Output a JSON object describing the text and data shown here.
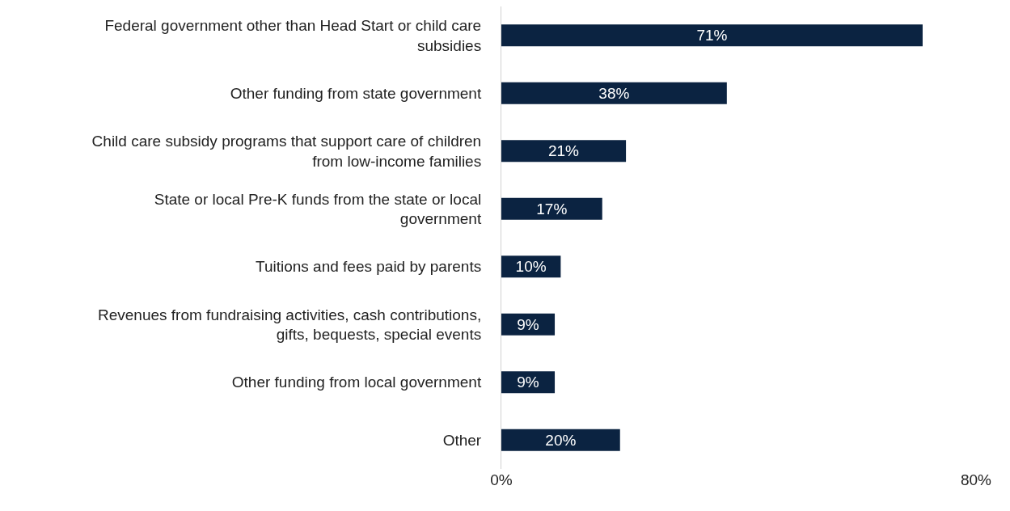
{
  "chart_data": {
    "type": "bar",
    "orientation": "horizontal",
    "categories": [
      "Federal government other than Head Start or child care\nsubsidies",
      "Other funding from state government",
      "Child care subsidy programs that support care of children\nfrom low-income families",
      "State or local Pre-K funds from the state or local\ngovernment",
      "Tuitions and fees paid by parents",
      "Revenues from fundraising activities, cash contributions,\ngifts, bequests, special events",
      "Other funding from local government",
      "Other"
    ],
    "values": [
      71,
      38,
      21,
      17,
      10,
      9,
      9,
      20
    ],
    "value_labels": [
      "71%",
      "38%",
      "21%",
      "17%",
      "10%",
      "9%",
      "9%",
      "20%"
    ],
    "color": "#0b2341",
    "xlim": [
      0,
      80
    ],
    "xticks": [
      {
        "value": 0,
        "label": "0%"
      },
      {
        "value": 80,
        "label": "80%"
      }
    ],
    "legend": false
  }
}
